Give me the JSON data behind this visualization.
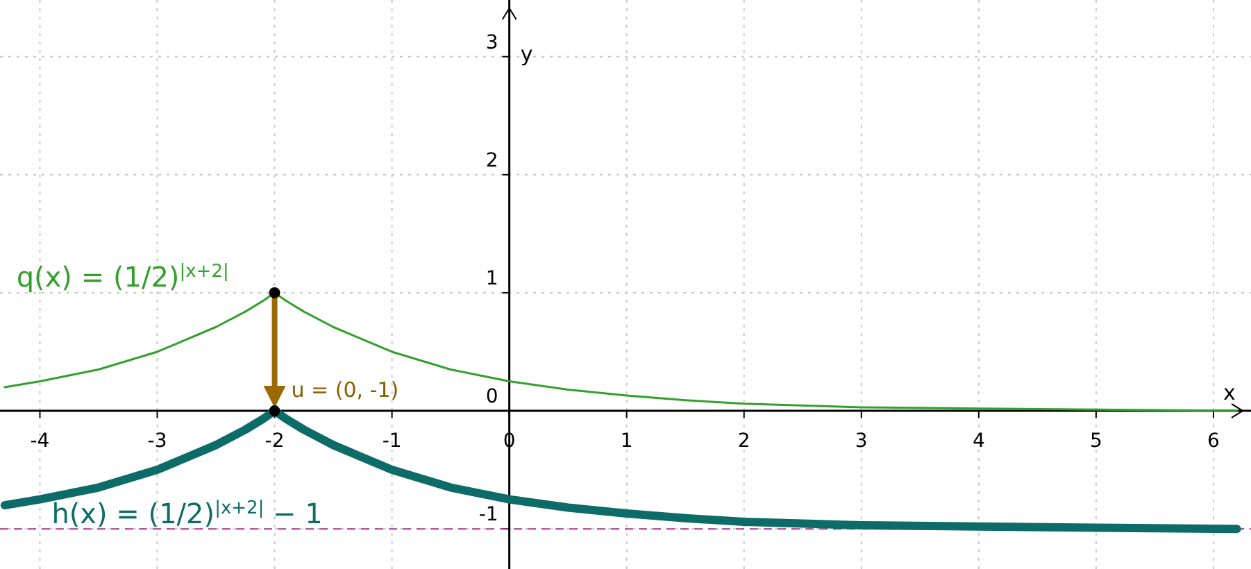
{
  "chart_data": {
    "type": "line",
    "xlabel": "x",
    "ylabel": "y",
    "xlim": [
      -4.34,
      6.32
    ],
    "ylim": [
      -1.34,
      3.48
    ],
    "xticks": [
      -4,
      -3,
      -2,
      -1,
      0,
      1,
      2,
      3,
      4,
      5,
      6
    ],
    "yticks": [
      -1,
      0,
      1,
      2,
      3
    ],
    "grid": true,
    "line_style": "solid",
    "series": [
      {
        "marker": "none",
        "color": "#33a02c",
        "x": [
          -4.3,
          -4,
          -3.5,
          -3,
          -2.5,
          -2.25,
          -2.1,
          -2,
          -1.9,
          -1.75,
          -1.5,
          -1,
          -0.5,
          0,
          0.5,
          1,
          1.5,
          2,
          3,
          4,
          5,
          6.2
        ],
        "values": [
          0.2,
          0.25,
          0.35,
          0.5,
          0.71,
          0.84,
          0.93,
          1,
          0.93,
          0.84,
          0.71,
          0.5,
          0.35,
          0.25,
          0.18,
          0.13,
          0.09,
          0.06,
          0.03,
          0.02,
          0.01,
          0
        ]
      },
      {
        "marker": "none",
        "color": "#0d6b68",
        "x": [
          -4.3,
          -4,
          -3.5,
          -3,
          -2.5,
          -2.25,
          -2.1,
          -2,
          -1.9,
          -1.75,
          -1.5,
          -1,
          -0.5,
          0,
          0.5,
          1,
          1.5,
          2,
          3,
          4,
          5,
          6.2
        ],
        "values": [
          -0.8,
          -0.75,
          -0.65,
          -0.5,
          -0.29,
          -0.16,
          -0.07,
          0,
          -0.07,
          -0.16,
          -0.29,
          -0.5,
          -0.65,
          -0.75,
          -0.82,
          -0.87,
          -0.91,
          -0.94,
          -0.97,
          -0.98,
          -0.99,
          -1
        ]
      },
      {
        "type": "scatter",
        "marker": "circle",
        "color": "#000000",
        "x": [
          -2,
          -2
        ],
        "values": [
          1,
          0
        ]
      }
    ],
    "ref_lines": [
      {
        "axis": "y",
        "value": -1,
        "color": "#aa3399",
        "line_style": "dashed"
      }
    ],
    "annotations": [
      "q(x)  =  (1/2)$^{|x+2|}$",
      "h(x)  =  (1/2)$^{|x+2|}$  − 1",
      {
        "text": "u = (0, -1)",
        "x": -2,
        "y": 0
      }
    ]
  }
}
